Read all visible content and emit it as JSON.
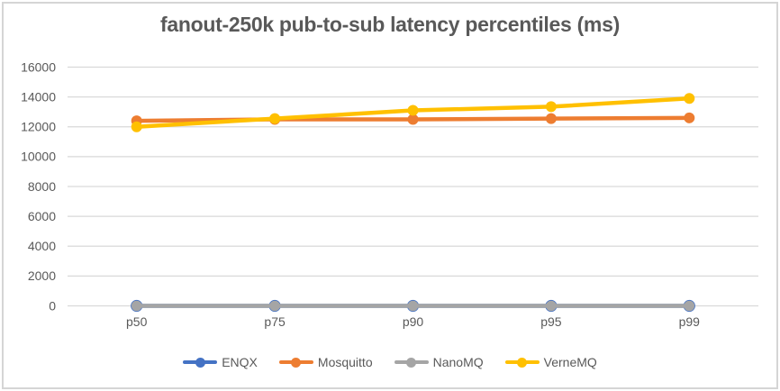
{
  "chart_data": {
    "type": "line",
    "title": "fanout-250k pub-to-sub latency percentiles (ms)",
    "xlabel": "",
    "ylabel": "",
    "categories": [
      "p50",
      "p75",
      "p90",
      "p95",
      "p99"
    ],
    "series": [
      {
        "name": "ENQX",
        "color": "#4472C4",
        "values": [
          0,
          0,
          0,
          0,
          0
        ]
      },
      {
        "name": "Mosquitto",
        "color": "#ED7D31",
        "values": [
          12400,
          12500,
          12500,
          12550,
          12600
        ]
      },
      {
        "name": "NanoMQ",
        "color": "#A5A5A5",
        "values": [
          0,
          0,
          0,
          0,
          0
        ]
      },
      {
        "name": "VerneMQ",
        "color": "#FFC000",
        "values": [
          12000,
          12550,
          13100,
          13350,
          13900
        ]
      }
    ],
    "y_axis": {
      "min": 0,
      "max": 16000,
      "step": 2000,
      "ticks": [
        0,
        2000,
        4000,
        6000,
        8000,
        10000,
        12000,
        14000,
        16000
      ],
      "tick_labels": [
        "0",
        "2000",
        "4000",
        "6000",
        "8000",
        "10000",
        "12000",
        "14000",
        "16000"
      ]
    },
    "grid": true,
    "legend_position": "bottom"
  },
  "colors": {
    "gridline": "#D9D9D9",
    "axis_text": "#595959",
    "title_text": "#595959",
    "background": "#FFFFFF",
    "frame_border": "#D5D5D5"
  }
}
